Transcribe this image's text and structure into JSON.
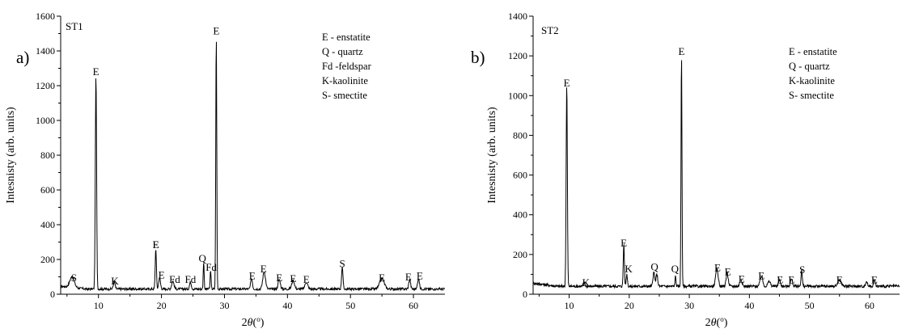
{
  "chart_data": [
    {
      "type": "line",
      "panel_label": "a)",
      "sample": "ST1",
      "xlabel": "2θ(°)",
      "ylabel": "Intesnisty (arb. units)",
      "xlim": [
        4,
        65
      ],
      "ylim": [
        0,
        1600
      ],
      "xticks": [
        10,
        20,
        30,
        40,
        50,
        60
      ],
      "yticks": [
        0,
        200,
        400,
        600,
        800,
        1000,
        1200,
        1400,
        1600
      ],
      "legend": [
        "E - enstatite",
        "Q - quartz",
        "Fd -feldspar",
        "K-kaolinite",
        "S- smectite"
      ],
      "legend_position": "top-right",
      "background": 30,
      "peaks": [
        {
          "x": 5.8,
          "y": 60,
          "w": 0.5
        },
        {
          "x": 9.6,
          "y": 1230,
          "w": 0.14
        },
        {
          "x": 12.5,
          "y": 40,
          "w": 0.2
        },
        {
          "x": 19.1,
          "y": 235,
          "w": 0.13
        },
        {
          "x": 19.7,
          "y": 65,
          "w": 0.2
        },
        {
          "x": 21.8,
          "y": 45,
          "w": 0.25
        },
        {
          "x": 24.6,
          "y": 40,
          "w": 0.2
        },
        {
          "x": 26.7,
          "y": 160,
          "w": 0.1
        },
        {
          "x": 27.8,
          "y": 110,
          "w": 0.1
        },
        {
          "x": 28.7,
          "y": 1470,
          "w": 0.11
        },
        {
          "x": 34.3,
          "y": 60,
          "w": 0.2
        },
        {
          "x": 36.3,
          "y": 100,
          "w": 0.3
        },
        {
          "x": 38.7,
          "y": 55,
          "w": 0.25
        },
        {
          "x": 40.9,
          "y": 50,
          "w": 0.3
        },
        {
          "x": 43.0,
          "y": 40,
          "w": 0.3
        },
        {
          "x": 48.7,
          "y": 130,
          "w": 0.15
        },
        {
          "x": 55.0,
          "y": 60,
          "w": 0.5
        },
        {
          "x": 59.4,
          "y": 55,
          "w": 0.2
        },
        {
          "x": 60.8,
          "y": 60,
          "w": 0.2
        }
      ],
      "annotations": [
        {
          "text": "S",
          "x": 6.1,
          "y": 75
        },
        {
          "text": "E",
          "x": 9.6,
          "y": 1260
        },
        {
          "text": "K",
          "x": 12.6,
          "y": 55
        },
        {
          "text": "E",
          "x": 19.1,
          "y": 265
        },
        {
          "text": "E",
          "x": 19.1,
          "y": 265
        },
        {
          "text": "E",
          "x": 20.0,
          "y": 90
        },
        {
          "text": "Fd",
          "x": 22.1,
          "y": 65
        },
        {
          "text": "Fd",
          "x": 24.6,
          "y": 65
        },
        {
          "text": "Q",
          "x": 26.5,
          "y": 185
        },
        {
          "text": "Fd",
          "x": 27.9,
          "y": 135
        },
        {
          "text": "E",
          "x": 28.7,
          "y": 1495
        },
        {
          "text": "E",
          "x": 34.4,
          "y": 85
        },
        {
          "text": "E",
          "x": 36.2,
          "y": 125
        },
        {
          "text": "E",
          "x": 38.7,
          "y": 75
        },
        {
          "text": "E",
          "x": 40.9,
          "y": 70
        },
        {
          "text": "E",
          "x": 43.0,
          "y": 65
        },
        {
          "text": "S",
          "x": 48.7,
          "y": 155
        },
        {
          "text": "E",
          "x": 55.0,
          "y": 75
        },
        {
          "text": "E",
          "x": 59.2,
          "y": 80
        },
        {
          "text": "E",
          "x": 61.0,
          "y": 85
        }
      ]
    },
    {
      "type": "line",
      "panel_label": "b)",
      "sample": "ST2",
      "xlabel": "2θ(°)",
      "ylabel": "Intesnisty (arb. units)",
      "xlim": [
        4,
        65
      ],
      "ylim": [
        0,
        1400
      ],
      "xticks": [
        10,
        20,
        30,
        40,
        50,
        60
      ],
      "yticks": [
        0,
        200,
        400,
        600,
        800,
        1000,
        1200,
        1400
      ],
      "legend": [
        "E - enstatite",
        "Q - quartz",
        "K-kaolinite",
        "S- smectite"
      ],
      "legend_position": "top-right",
      "background": 40,
      "peaks": [
        {
          "x": 9.6,
          "y": 1020,
          "w": 0.14
        },
        {
          "x": 12.5,
          "y": 20,
          "w": 0.2
        },
        {
          "x": 19.1,
          "y": 215,
          "w": 0.13
        },
        {
          "x": 19.6,
          "y": 60,
          "w": 0.15
        },
        {
          "x": 24.1,
          "y": 70,
          "w": 0.2
        },
        {
          "x": 24.6,
          "y": 60,
          "w": 0.2
        },
        {
          "x": 27.7,
          "y": 50,
          "w": 0.12
        },
        {
          "x": 28.7,
          "y": 1180,
          "w": 0.11
        },
        {
          "x": 34.6,
          "y": 85,
          "w": 0.3
        },
        {
          "x": 36.3,
          "y": 65,
          "w": 0.25
        },
        {
          "x": 38.6,
          "y": 35,
          "w": 0.25
        },
        {
          "x": 42.0,
          "y": 50,
          "w": 0.3
        },
        {
          "x": 43.3,
          "y": 25,
          "w": 0.3
        },
        {
          "x": 45.0,
          "y": 30,
          "w": 0.25
        },
        {
          "x": 47.0,
          "y": 35,
          "w": 0.25
        },
        {
          "x": 48.7,
          "y": 80,
          "w": 0.15
        },
        {
          "x": 55.0,
          "y": 30,
          "w": 0.4
        },
        {
          "x": 59.5,
          "y": 25,
          "w": 0.2
        },
        {
          "x": 60.8,
          "y": 30,
          "w": 0.2
        }
      ],
      "annotations": [
        {
          "text": "E",
          "x": 9.6,
          "y": 1045
        },
        {
          "text": "K",
          "x": 12.8,
          "y": 40
        },
        {
          "text": "E",
          "x": 19.1,
          "y": 240
        },
        {
          "text": "K",
          "x": 19.9,
          "y": 110
        },
        {
          "text": "Q",
          "x": 24.2,
          "y": 120
        },
        {
          "text": "Q",
          "x": 27.6,
          "y": 110
        },
        {
          "text": "E",
          "x": 28.7,
          "y": 1205
        },
        {
          "text": "E",
          "x": 34.7,
          "y": 115
        },
        {
          "text": "E",
          "x": 36.4,
          "y": 95
        },
        {
          "text": "E",
          "x": 38.7,
          "y": 60
        },
        {
          "text": "E",
          "x": 42.0,
          "y": 75
        },
        {
          "text": "E",
          "x": 45.1,
          "y": 55
        },
        {
          "text": "E",
          "x": 47.0,
          "y": 55
        },
        {
          "text": "S",
          "x": 48.8,
          "y": 105
        },
        {
          "text": "E",
          "x": 55.0,
          "y": 55
        },
        {
          "text": "E",
          "x": 60.8,
          "y": 55
        }
      ]
    }
  ]
}
